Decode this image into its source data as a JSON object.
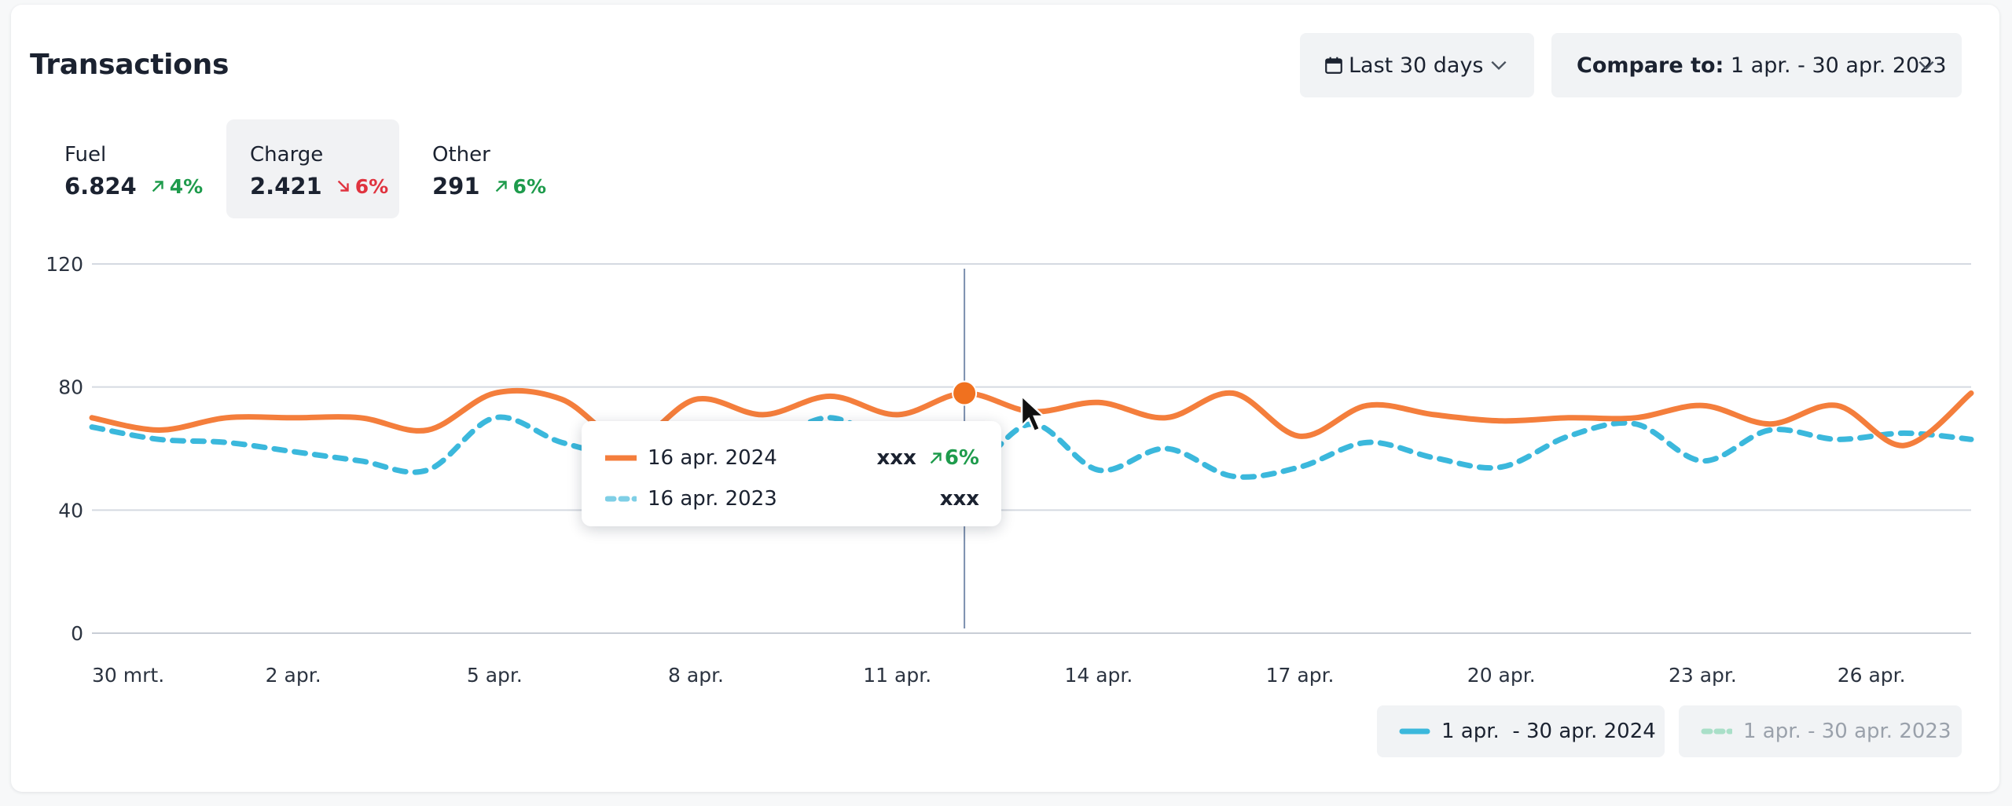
{
  "header": {
    "title": "Transactions"
  },
  "controls": {
    "range_label": "Last 30 days",
    "compare_prefix": "Compare to:",
    "compare_value": " 1 apr. - 30 apr. 2023"
  },
  "kpis": [
    {
      "label": "Fuel",
      "value": "6.824",
      "delta": "4%",
      "direction": "up"
    },
    {
      "label": "Charge",
      "value": "2.421",
      "delta": "6%",
      "direction": "down"
    },
    {
      "label": "Other",
      "value": "291",
      "delta": "6%",
      "direction": "up"
    }
  ],
  "tooltip": {
    "current_date": "16 apr. 2024",
    "current_value": "xxx",
    "current_delta": "6%",
    "previous_date": "16 apr. 2023",
    "previous_value": "xxx"
  },
  "legend": {
    "current": "1 apr.  - 30 apr. 2024",
    "previous": "1 apr. - 30 apr. 2023"
  },
  "colors": {
    "current": "#f47e3c",
    "previous": "#3bb8dc",
    "previous_legend": "#a9dfc8",
    "up": "#1e9b4c",
    "down": "#e0333f"
  },
  "chart_data": {
    "type": "line",
    "ylim": [
      0,
      120
    ],
    "yticks": [
      0,
      40,
      80,
      120
    ],
    "xticks": [
      "30 mrt.",
      "2 apr.",
      "5 apr.",
      "8 apr.",
      "11 apr.",
      "14 apr.",
      "17 apr.",
      "20 apr.",
      "23 apr.",
      "26 apr."
    ],
    "x": [
      "30 mrt.",
      "31 mrt.",
      "1 apr.",
      "2 apr.",
      "3 apr.",
      "4 apr.",
      "5 apr.",
      "6 apr.",
      "7 apr.",
      "8 apr.",
      "9 apr.",
      "10 apr.",
      "11 apr.",
      "12 apr.",
      "13 apr.",
      "14 apr.",
      "15 apr.",
      "16 apr.",
      "17 apr.",
      "18 apr.",
      "19 apr.",
      "20 apr.",
      "21 apr.",
      "22 apr.",
      "23 apr.",
      "24 apr.",
      "25 apr.",
      "26 apr.",
      "27 apr."
    ],
    "highlight_index": 13,
    "series": [
      {
        "name": "1 apr.  - 30 apr. 2024",
        "values": [
          70,
          66,
          70,
          70,
          70,
          66,
          78,
          76,
          62,
          76,
          71,
          77,
          71,
          78,
          72,
          75,
          70,
          78,
          64,
          74,
          71,
          69,
          70,
          70,
          74,
          68,
          74,
          61,
          78
        ]
      },
      {
        "name": "1 apr. - 30 apr. 2023",
        "values": [
          67,
          63,
          62,
          59,
          56,
          53,
          70,
          62,
          58,
          64,
          62,
          70,
          60,
          52,
          68,
          53,
          60,
          51,
          54,
          62,
          57,
          54,
          64,
          68,
          56,
          66,
          63,
          65,
          63
        ]
      }
    ]
  }
}
